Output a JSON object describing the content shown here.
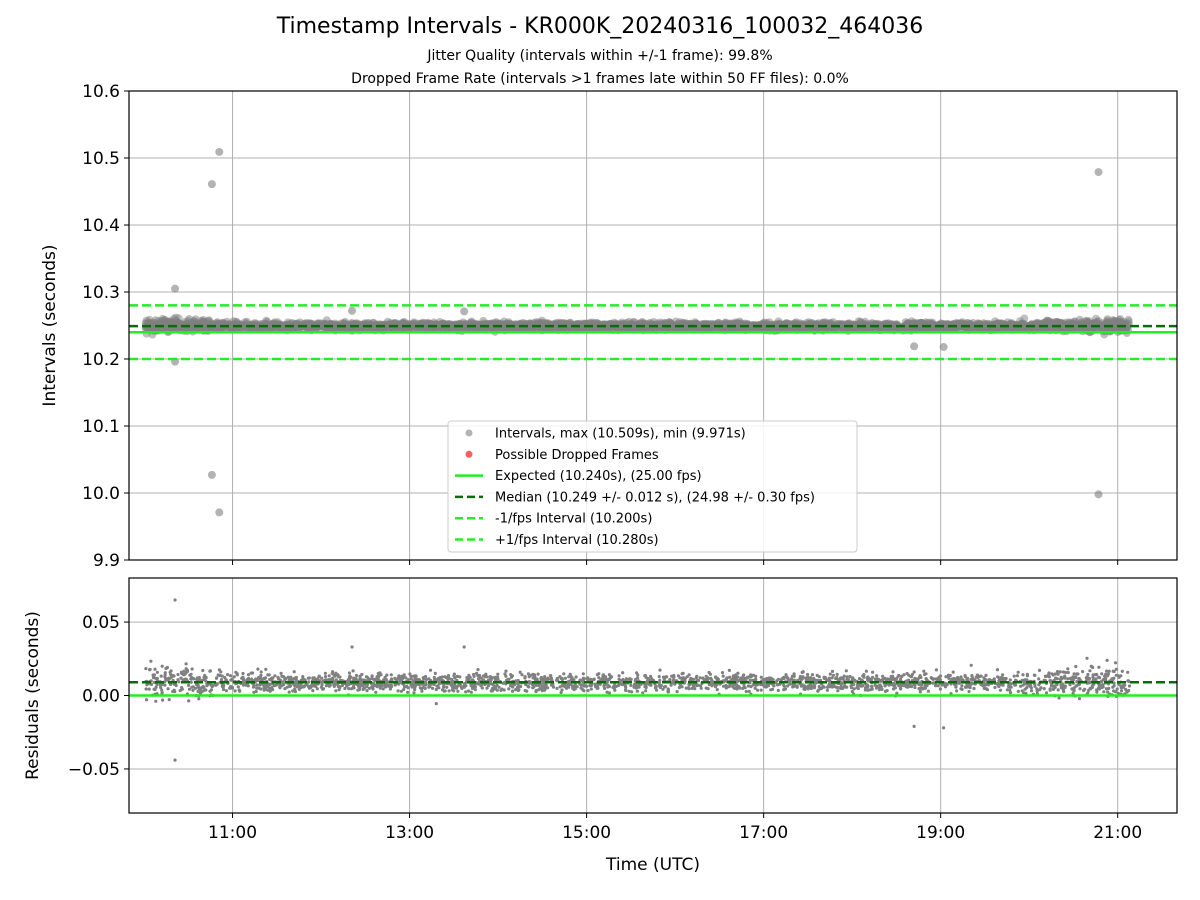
{
  "header": {
    "title": "Timestamp Intervals - KR000K_20240316_100032_464036",
    "subtitle_1": "Jitter Quality (intervals within +/-1 frame): 99.8%",
    "subtitle_2": "Dropped Frame Rate (intervals >1 frames late within 50 FF files): 0.0%"
  },
  "colors": {
    "points": "#808080",
    "dropped": "#ff4d4d",
    "expected": "#22ee22",
    "median": "#0a6b0a",
    "interval": "#22ee22",
    "grid": "#b0b0b0"
  },
  "chart_data": [
    {
      "type": "scatter",
      "xlabel": "",
      "ylabel": "Intervals (seconds)",
      "xlim_hours": [
        9.83,
        21.67
      ],
      "ylim": [
        9.9,
        10.6
      ],
      "yticks": [
        9.9,
        10.0,
        10.1,
        10.2,
        10.3,
        10.4,
        10.5,
        10.6
      ],
      "ytick_labels": [
        "9.9",
        "10.0",
        "10.1",
        "10.2",
        "10.3",
        "10.4",
        "10.5",
        "10.6"
      ],
      "grid": true,
      "legend_position": "lower-center",
      "series": [
        {
          "name": "Intervals, max (10.509s), min (9.971s)",
          "kind": "points",
          "x_range": [
            "10:01",
            "21:08"
          ],
          "center": 10.249,
          "spread": 0.012,
          "count": 3900
        },
        {
          "name": "Possible Dropped Frames",
          "kind": "points",
          "count": 0
        },
        {
          "name": "Expected (10.240s), (25.00 fps)",
          "kind": "hline",
          "y": 10.24
        },
        {
          "name": "Median (10.249 +/- 0.012 s), (24.98 +/- 0.30 fps)",
          "kind": "hline",
          "y": 10.249
        },
        {
          "name": "-1/fps Interval (10.200s)",
          "kind": "hline",
          "y": 10.2
        },
        {
          "name": "+1/fps Interval (10.280s)",
          "kind": "hline",
          "y": 10.28
        }
      ],
      "outliers": [
        {
          "x": "10:21",
          "y": 10.305
        },
        {
          "x": "10:21",
          "y": 10.196
        },
        {
          "x": "10:46",
          "y": 10.461
        },
        {
          "x": "10:51",
          "y": 10.509
        },
        {
          "x": "10:46",
          "y": 10.027
        },
        {
          "x": "10:51",
          "y": 9.971
        },
        {
          "x": "20:47",
          "y": 10.479
        },
        {
          "x": "20:47",
          "y": 9.998
        },
        {
          "x": "12:21",
          "y": 10.272
        },
        {
          "x": "13:37",
          "y": 10.271
        },
        {
          "x": "18:42",
          "y": 10.219
        },
        {
          "x": "19:02",
          "y": 10.218
        }
      ]
    },
    {
      "type": "scatter",
      "xlabel": "Time (UTC)",
      "ylabel": "Residuals (seconds)",
      "xlim_hours": [
        9.83,
        21.67
      ],
      "ylim": [
        -0.08,
        0.08
      ],
      "yticks": [
        -0.05,
        0.0,
        0.05
      ],
      "ytick_labels": [
        "−0.05",
        "0.00",
        "0.05"
      ],
      "xticks": [
        "11:00",
        "13:00",
        "15:00",
        "17:00",
        "19:00",
        "21:00"
      ],
      "grid": true,
      "series": [
        {
          "name": "Residuals",
          "kind": "points",
          "center": 0.009,
          "spread": 0.012,
          "count": 2400
        },
        {
          "name": "Expected",
          "kind": "hline",
          "y": 0.0
        },
        {
          "name": "Median",
          "kind": "hline",
          "y": 0.009
        }
      ],
      "outliers": [
        {
          "x": "10:21",
          "y": 0.065
        },
        {
          "x": "10:21",
          "y": -0.044
        },
        {
          "x": "12:21",
          "y": 0.033
        },
        {
          "x": "13:37",
          "y": 0.033
        },
        {
          "x": "18:42",
          "y": -0.021
        },
        {
          "x": "19:02",
          "y": -0.022
        }
      ]
    }
  ]
}
